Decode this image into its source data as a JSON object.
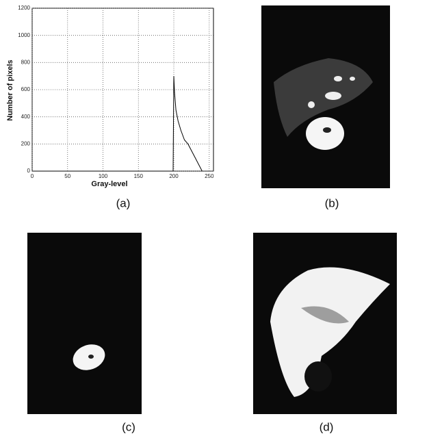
{
  "chart_data": {
    "type": "line",
    "xlabel": "Gray-level",
    "ylabel": "Number of pixels",
    "x": [
      0,
      199,
      200,
      201,
      203,
      206,
      210,
      215,
      220,
      225,
      230,
      235,
      240
    ],
    "values": [
      0,
      0,
      700,
      580,
      450,
      370,
      300,
      230,
      200,
      150,
      100,
      50,
      0
    ],
    "color": "#000000",
    "xlim": [
      0,
      256
    ],
    "ylim": [
      0,
      1200
    ],
    "xticks": [
      0,
      50,
      100,
      150,
      200,
      250
    ],
    "yticks": [
      0,
      200,
      400,
      600,
      800,
      1000,
      1200
    ],
    "grid": true
  },
  "captions": [
    "(a)",
    "(b)",
    "(c)",
    "(d)"
  ]
}
